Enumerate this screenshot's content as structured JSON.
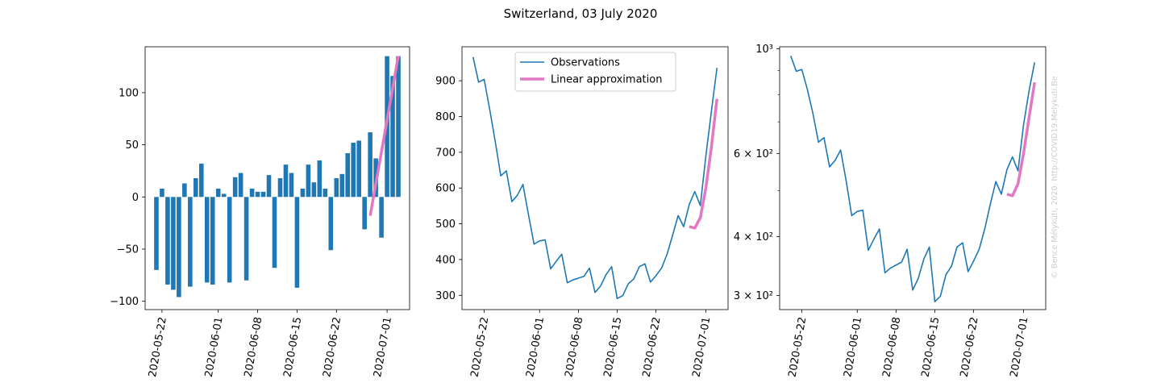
{
  "title": "Switzerland, 03 July 2020",
  "watermark": "© Bence Mélykúti, 2020. http://COVID19.Melykuti.Be",
  "colors": {
    "observations": "#1f77b4",
    "linear": "#e377c2",
    "watermark": "#cccccc"
  },
  "chart_data": [
    {
      "type": "bar",
      "title": "",
      "x_dates": [
        "2020-05-21",
        "2020-05-22",
        "2020-05-23",
        "2020-05-24",
        "2020-05-25",
        "2020-05-26",
        "2020-05-27",
        "2020-05-28",
        "2020-05-29",
        "2020-05-30",
        "2020-05-31",
        "2020-06-01",
        "2020-06-02",
        "2020-06-03",
        "2020-06-04",
        "2020-06-05",
        "2020-06-06",
        "2020-06-07",
        "2020-06-08",
        "2020-06-09",
        "2020-06-10",
        "2020-06-11",
        "2020-06-12",
        "2020-06-13",
        "2020-06-14",
        "2020-06-15",
        "2020-06-16",
        "2020-06-17",
        "2020-06-18",
        "2020-06-19",
        "2020-06-20",
        "2020-06-21",
        "2020-06-22",
        "2020-06-23",
        "2020-06-24",
        "2020-06-25",
        "2020-06-26",
        "2020-06-27",
        "2020-06-28",
        "2020-06-29",
        "2020-06-30",
        "2020-07-01",
        "2020-07-02",
        "2020-07-03"
      ],
      "values": [
        -70,
        8,
        -84,
        -89,
        -96,
        13,
        -86,
        18,
        32,
        -82,
        -84,
        8,
        3,
        -82,
        19,
        23,
        -80,
        8,
        5,
        5,
        21,
        -68,
        18,
        31,
        23,
        -87,
        8,
        31,
        14,
        35,
        8,
        -51,
        18,
        22,
        42,
        52,
        54,
        -31,
        62,
        37,
        -39,
        135,
        116,
        135
      ],
      "series": [
        {
          "name": "",
          "x_dates": [
            "2020-06-28",
            "2020-07-03"
          ],
          "values": [
            -18,
            135
          ]
        }
      ],
      "ylim": [
        -108,
        144
      ],
      "yticks": [
        "−100",
        "−50",
        "0",
        "50",
        "100"
      ],
      "xticks": [
        "2020-05-22",
        "2020-06-01",
        "2020-06-08",
        "2020-06-15",
        "2020-06-22",
        "2020-07-01"
      ],
      "grid": false
    },
    {
      "type": "line",
      "title": "",
      "legend": {
        "placement": "upper center",
        "entries": [
          "Observations",
          "Linear approximation"
        ]
      },
      "series": [
        {
          "name": "Observations",
          "x_dates": [
            "2020-05-20",
            "2020-05-21",
            "2020-05-22",
            "2020-05-23",
            "2020-05-24",
            "2020-05-25",
            "2020-05-26",
            "2020-05-27",
            "2020-05-28",
            "2020-05-29",
            "2020-05-30",
            "2020-05-31",
            "2020-06-01",
            "2020-06-02",
            "2020-06-03",
            "2020-06-04",
            "2020-06-05",
            "2020-06-06",
            "2020-06-07",
            "2020-06-08",
            "2020-06-09",
            "2020-06-10",
            "2020-06-11",
            "2020-06-12",
            "2020-06-13",
            "2020-06-14",
            "2020-06-15",
            "2020-06-16",
            "2020-06-17",
            "2020-06-18",
            "2020-06-19",
            "2020-06-20",
            "2020-06-21",
            "2020-06-22",
            "2020-06-23",
            "2020-06-24",
            "2020-06-25",
            "2020-06-26",
            "2020-06-27",
            "2020-06-28",
            "2020-06-29",
            "2020-06-30",
            "2020-07-01",
            "2020-07-02",
            "2020-07-03"
          ],
          "values": [
            966,
            896,
            904,
            820,
            730,
            634,
            648,
            562,
            580,
            610,
            525,
            443,
            452,
            455,
            374,
            395,
            415,
            335,
            343,
            348,
            353,
            376,
            308,
            326,
            358,
            380,
            291,
            299,
            332,
            346,
            380,
            388,
            337,
            355,
            376,
            415,
            468,
            523,
            492,
            554,
            590,
            551,
            690,
            815,
            936
          ]
        },
        {
          "name": "Linear approximation",
          "x_dates": [
            "2020-06-28",
            "2020-06-29",
            "2020-06-30",
            "2020-07-01",
            "2020-07-02",
            "2020-07-03"
          ],
          "values": [
            492,
            488,
            517,
            600,
            715,
            849
          ]
        }
      ],
      "ylim": [
        260,
        995
      ],
      "yticks": [
        "300",
        "400",
        "500",
        "600",
        "700",
        "800",
        "900"
      ],
      "xticks": [
        "2020-05-22",
        "2020-06-01",
        "2020-06-08",
        "2020-06-15",
        "2020-06-22",
        "2020-07-01"
      ],
      "grid": false
    },
    {
      "type": "line",
      "title": "",
      "y_scale": "log",
      "series": [
        {
          "name": "Observations",
          "x_dates": [
            "2020-05-20",
            "2020-05-21",
            "2020-05-22",
            "2020-05-23",
            "2020-05-24",
            "2020-05-25",
            "2020-05-26",
            "2020-05-27",
            "2020-05-28",
            "2020-05-29",
            "2020-05-30",
            "2020-05-31",
            "2020-06-01",
            "2020-06-02",
            "2020-06-03",
            "2020-06-04",
            "2020-06-05",
            "2020-06-06",
            "2020-06-07",
            "2020-06-08",
            "2020-06-09",
            "2020-06-10",
            "2020-06-11",
            "2020-06-12",
            "2020-06-13",
            "2020-06-14",
            "2020-06-15",
            "2020-06-16",
            "2020-06-17",
            "2020-06-18",
            "2020-06-19",
            "2020-06-20",
            "2020-06-21",
            "2020-06-22",
            "2020-06-23",
            "2020-06-24",
            "2020-06-25",
            "2020-06-26",
            "2020-06-27",
            "2020-06-28",
            "2020-06-29",
            "2020-06-30",
            "2020-07-01",
            "2020-07-02",
            "2020-07-03"
          ],
          "values": [
            966,
            896,
            904,
            820,
            730,
            634,
            648,
            562,
            580,
            610,
            525,
            443,
            452,
            455,
            374,
            395,
            415,
            335,
            343,
            348,
            353,
            376,
            308,
            326,
            358,
            380,
            291,
            299,
            332,
            346,
            380,
            388,
            337,
            355,
            376,
            415,
            468,
            523,
            492,
            554,
            590,
            551,
            690,
            815,
            936
          ]
        },
        {
          "name": "Linear approximation",
          "x_dates": [
            "2020-06-28",
            "2020-06-29",
            "2020-06-30",
            "2020-07-01",
            "2020-07-02",
            "2020-07-03"
          ],
          "values": [
            492,
            488,
            517,
            600,
            715,
            849
          ]
        }
      ],
      "ylim": [
        280,
        1010
      ],
      "yticks": [
        {
          "value": 300,
          "label": "3 × 10²"
        },
        {
          "value": 400,
          "label": "4 × 10²"
        },
        {
          "value": 600,
          "label": "6 × 10²"
        },
        {
          "value": 1000,
          "label": "10³"
        }
      ],
      "minor_yticks": [
        500,
        700,
        800,
        900
      ],
      "xticks": [
        "2020-05-22",
        "2020-06-01",
        "2020-06-08",
        "2020-06-15",
        "2020-06-22",
        "2020-07-01"
      ],
      "grid": false
    }
  ]
}
